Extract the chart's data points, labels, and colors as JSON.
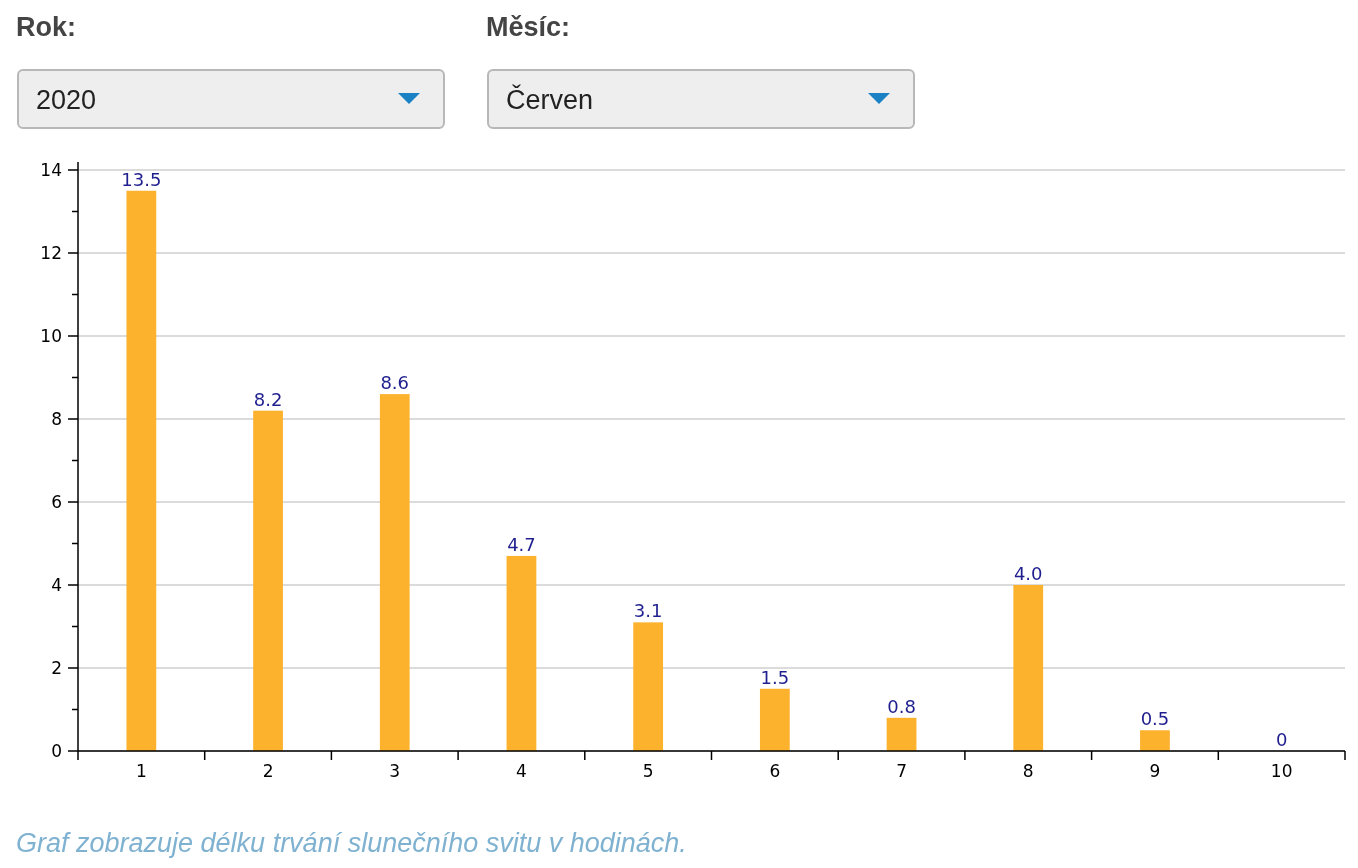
{
  "chart_data": {
    "type": "bar",
    "categories": [
      "1",
      "2",
      "3",
      "4",
      "5",
      "6",
      "7",
      "8",
      "9",
      "10"
    ],
    "values": [
      13.5,
      8.2,
      8.6,
      4.7,
      3.1,
      1.5,
      0.8,
      4.0,
      0.5,
      0
    ],
    "value_labels": [
      "13.5",
      "8.2",
      "8.6",
      "4.7",
      "3.1",
      "1.5",
      "0.8",
      "4.0",
      "0.5",
      "0"
    ],
    "color": "#fdb22e",
    "ylim": [
      0,
      14
    ],
    "yticks": [
      0,
      {
        "value": 1,
        "label": null
      },
      2,
      {
        "value": 3,
        "label": null
      },
      4,
      {
        "value": 5,
        "label": null
      },
      6,
      {
        "value": 7,
        "label": null
      },
      8,
      {
        "value": 9,
        "label": null
      },
      10,
      {
        "value": 11,
        "label": null
      },
      12,
      {
        "value": 13,
        "label": null
      },
      14
    ],
    "grid": "y",
    "annotations": [
      "Rok:",
      "2020",
      "Měsíc:",
      "Červen",
      "Graf zobrazuje délku trvání slunečního svitu v hodinách."
    ]
  }
}
